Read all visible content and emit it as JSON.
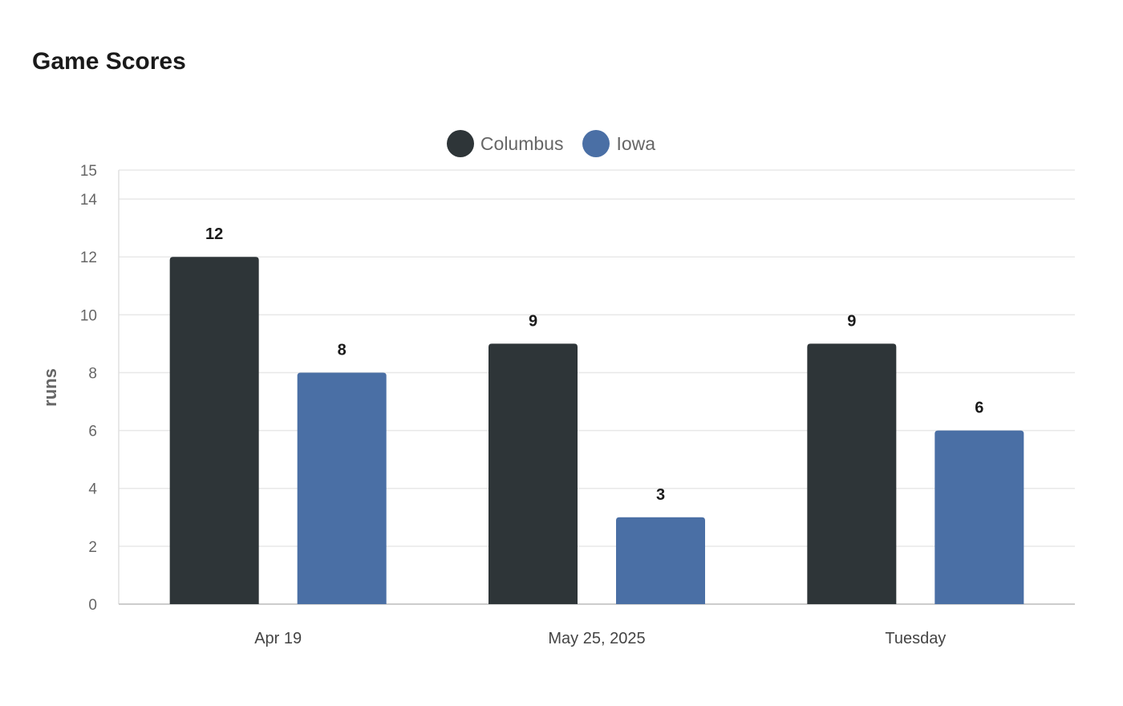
{
  "chart_data": {
    "type": "bar",
    "title": "Game Scores",
    "xlabel": "",
    "ylabel": "runs",
    "categories": [
      "Apr 19",
      "May 25, 2025",
      "Tuesday"
    ],
    "series": [
      {
        "name": "Columbus",
        "color": "#2e3538",
        "values": [
          12,
          9,
          9
        ]
      },
      {
        "name": "Iowa",
        "color": "#4a6fa5",
        "values": [
          8,
          3,
          6
        ]
      }
    ],
    "ylim": [
      0,
      15
    ],
    "yticks": [
      0,
      2,
      4,
      6,
      8,
      10,
      12,
      14,
      15
    ],
    "grid": true,
    "legend_position": "top-center",
    "data_labels": true
  }
}
